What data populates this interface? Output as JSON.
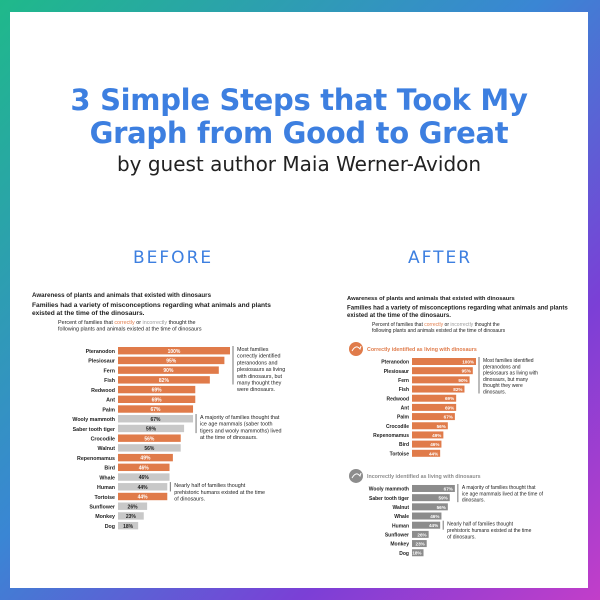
{
  "page": {
    "title_line1": "3 Simple Steps that Took My",
    "title_line2": "Graph from Good to Great",
    "subtitle": "by guest author Maia Werner-Avidon",
    "before_label": "BEFORE",
    "after_label": "AFTER"
  },
  "colors": {
    "orange": "#e07b4a",
    "gray": "#9a9a9a",
    "gray_light": "#c8c8c8",
    "text": "#222222"
  },
  "chart_data": [
    {
      "type": "bar",
      "panel": "before",
      "title": "Awareness of plants and animals that existed with dinosaurs",
      "subtitle": "Families had a variety of misconceptions regarding what animals and plants existed at the time of the dinosaurs.",
      "caption_pre": "Percent of families that ",
      "caption_correctly": "correctly",
      "caption_or": " or ",
      "caption_incorrectly": "incorrectly",
      "caption_post_line1": " thought the",
      "caption_line2": "following plants and animals existed at the time of dinosaurs",
      "xlim": [
        0,
        100
      ],
      "bars": [
        {
          "label": "Pteranodon",
          "value": 100,
          "value_label": "100%",
          "group": "correct"
        },
        {
          "label": "Plesiosaur",
          "value": 95,
          "value_label": "95%",
          "group": "correct"
        },
        {
          "label": "Fern",
          "value": 90,
          "value_label": "90%",
          "group": "correct"
        },
        {
          "label": "Fish",
          "value": 82,
          "value_label": "82%",
          "group": "correct"
        },
        {
          "label": "Redwood",
          "value": 69,
          "value_label": "69%",
          "group": "correct"
        },
        {
          "label": "Ant",
          "value": 69,
          "value_label": "69%",
          "group": "correct"
        },
        {
          "label": "Palm",
          "value": 67,
          "value_label": "67%",
          "group": "correct"
        },
        {
          "label": "Wooly mammoth",
          "value": 67,
          "value_label": "67%",
          "group": "incorrect"
        },
        {
          "label": "Saber tooth tiger",
          "value": 59,
          "value_label": "59%",
          "group": "incorrect"
        },
        {
          "label": "Crocodile",
          "value": 56,
          "value_label": "56%",
          "group": "correct"
        },
        {
          "label": "Walnut",
          "value": 56,
          "value_label": "56%",
          "group": "incorrect"
        },
        {
          "label": "Repenomamus",
          "value": 49,
          "value_label": "49%",
          "group": "correct"
        },
        {
          "label": "Bird",
          "value": 46,
          "value_label": "46%",
          "group": "correct"
        },
        {
          "label": "Whale",
          "value": 46,
          "value_label": "46%",
          "group": "incorrect"
        },
        {
          "label": "Human",
          "value": 44,
          "value_label": "44%",
          "group": "incorrect"
        },
        {
          "label": "Tortoise",
          "value": 44,
          "value_label": "44%",
          "group": "correct"
        },
        {
          "label": "Sunflower",
          "value": 26,
          "value_label": "26%",
          "group": "incorrect"
        },
        {
          "label": "Monkey",
          "value": 23,
          "value_label": "23%",
          "group": "incorrect"
        },
        {
          "label": "Dog",
          "value": 18,
          "value_label": "18%",
          "group": "incorrect"
        }
      ],
      "annotations": [
        {
          "lines": [
            "Most families",
            "correctly identified",
            "pteranodons and",
            "plesiosaurs as living",
            "with dinosaurs, but",
            "many thought they",
            "were dinosaurs."
          ],
          "from": 0,
          "to": 3
        },
        {
          "lines": [
            "A majority of families thought that",
            "ice age mammals (saber tooth",
            "tigers and wooly mammoths) lived",
            "at the time of dinosaurs."
          ],
          "from": 7,
          "to": 8
        },
        {
          "lines": [
            "Nearly half of families thought",
            "prehistoric humans existed at the time",
            "of dinosaurs."
          ],
          "from": 14,
          "to": 14
        }
      ]
    },
    {
      "type": "bar",
      "panel": "after",
      "title": "Awareness of plants and animals that existed with dinosaurs",
      "subtitle": "Families had a variety of misconceptions regarding what animals and plants existed at the time of the dinosaurs.",
      "caption_pre": "Percent of families that ",
      "caption_correctly": "correctly",
      "caption_or": " or ",
      "caption_incorrectly": "incorrectly",
      "caption_post_line1": " thought the",
      "caption_line2": "following plants and animals existed at the time of dinosaurs",
      "xlim": [
        0,
        100
      ],
      "groups": [
        {
          "name": "Correctly identified as living with dinosaurs",
          "kind": "correct",
          "bars": [
            {
              "label": "Pteranodon",
              "value": 100,
              "value_label": "100%"
            },
            {
              "label": "Plesiosaur",
              "value": 95,
              "value_label": "95%"
            },
            {
              "label": "Fern",
              "value": 90,
              "value_label": "90%"
            },
            {
              "label": "Fish",
              "value": 82,
              "value_label": "82%"
            },
            {
              "label": "Redwood",
              "value": 69,
              "value_label": "69%"
            },
            {
              "label": "Ant",
              "value": 69,
              "value_label": "69%"
            },
            {
              "label": "Palm",
              "value": 67,
              "value_label": "67%"
            },
            {
              "label": "Crocodile",
              "value": 56,
              "value_label": "56%"
            },
            {
              "label": "Repenomamus",
              "value": 49,
              "value_label": "49%"
            },
            {
              "label": "Bird",
              "value": 46,
              "value_label": "46%"
            },
            {
              "label": "Tortoise",
              "value": 44,
              "value_label": "44%"
            }
          ],
          "annotations": [
            {
              "lines": [
                "Most families identified",
                "pteranodons and",
                "plesiosaurs as living with",
                "dinosaurs, but many",
                "thought they were",
                "dinosaurs."
              ],
              "from": 0,
              "to": 3
            }
          ]
        },
        {
          "name": "Incorrectly identified as living with dinosaurs",
          "kind": "incorrect",
          "bars": [
            {
              "label": "Wooly mammoth",
              "value": 67,
              "value_label": "67%"
            },
            {
              "label": "Saber tooth tiger",
              "value": 59,
              "value_label": "59%"
            },
            {
              "label": "Walnut",
              "value": 56,
              "value_label": "56%"
            },
            {
              "label": "Whale",
              "value": 46,
              "value_label": "46%"
            },
            {
              "label": "Human",
              "value": 44,
              "value_label": "44%"
            },
            {
              "label": "Sunflower",
              "value": 26,
              "value_label": "26%"
            },
            {
              "label": "Monkey",
              "value": 23,
              "value_label": "23%"
            },
            {
              "label": "Dog",
              "value": 18,
              "value_label": "18%"
            }
          ],
          "annotations": [
            {
              "lines": [
                "A majority of families thought that",
                "ice age mammals lived at the time of",
                "dinosaurs."
              ],
              "from": 0,
              "to": 1
            },
            {
              "lines": [
                "Nearly half of families thought",
                "prehistoric humans existed at the time",
                "of dinosaurs."
              ],
              "from": 4,
              "to": 4
            }
          ]
        }
      ]
    }
  ]
}
